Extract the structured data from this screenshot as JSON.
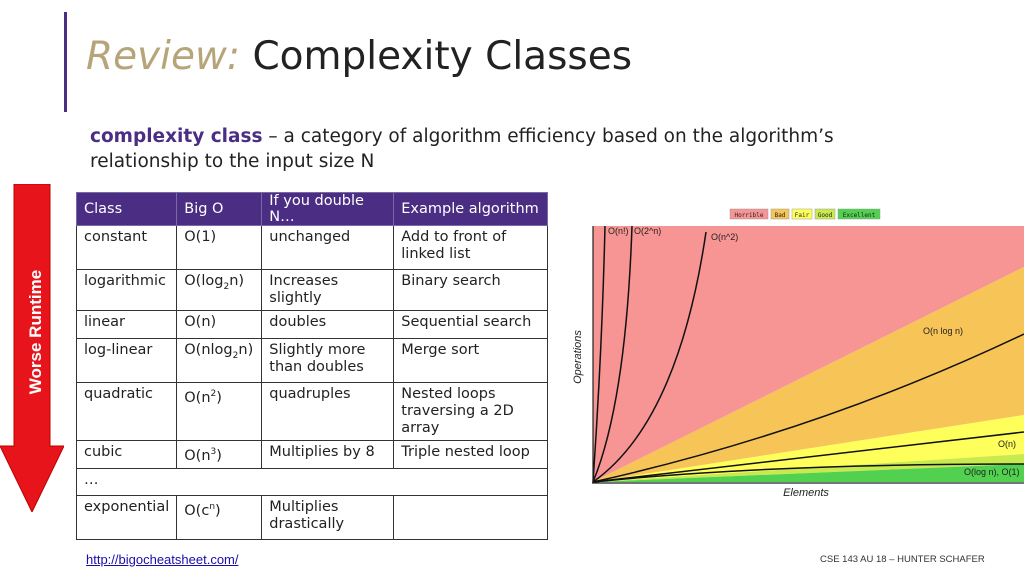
{
  "title": {
    "prefix": "Review:",
    "main": "Complexity Classes"
  },
  "definition": {
    "term": "complexity class",
    "text": " – a category of algorithm efficiency based on the algorithm’s relationship to the input size N"
  },
  "arrow_label": "Worse Runtime",
  "table": {
    "headers": [
      "Class",
      "Big O",
      "If you double N…",
      "Example algorithm"
    ],
    "rows": [
      {
        "cls": "constant",
        "big_o_base": "O(1)",
        "double": "unchanged",
        "example": "Add to front of linked list"
      },
      {
        "cls": "logarithmic",
        "big_o_pre": "O(log",
        "big_o_sub": "2",
        "big_o_post": "n)",
        "double": "Increases slightly",
        "example": "Binary search"
      },
      {
        "cls": "linear",
        "big_o_base": "O(n)",
        "double": "doubles",
        "example": "Sequential search"
      },
      {
        "cls": "log-linear",
        "big_o_pre": "O(nlog",
        "big_o_sub": "2",
        "big_o_post": "n)",
        "double": "Slightly more than doubles",
        "example": "Merge sort"
      },
      {
        "cls": "quadratic",
        "big_o_pre": "O(n",
        "big_o_sup": "2",
        "big_o_post": ")",
        "double": "quadruples",
        "example": "Nested loops traversing a 2D array"
      },
      {
        "cls": "cubic",
        "big_o_pre": "O(n",
        "big_o_sup": "3",
        "big_o_post": ")",
        "double": "Multiplies by 8",
        "example": "Triple nested loop"
      },
      {
        "ellipsis": "…"
      },
      {
        "cls": "exponential",
        "big_o_pre": "O(c",
        "big_o_sup": "n",
        "big_o_post": ")",
        "double": "Multiplies drastically",
        "example": ""
      }
    ]
  },
  "chart_data": {
    "type": "line",
    "legend": [
      "Horrible",
      "Bad",
      "Fair",
      "Good",
      "Excellent"
    ],
    "legend_colors": [
      "#f79494",
      "#f7c457",
      "#ffff5c",
      "#c8ea4e",
      "#52d150"
    ],
    "legend_placement": "top-center",
    "xlabel": "Elements",
    "ylabel": "Operations",
    "series": [
      {
        "name": "O(n!)"
      },
      {
        "name": "O(2^n)"
      },
      {
        "name": "O(n^2)"
      },
      {
        "name": "O(n log n)"
      },
      {
        "name": "O(n)"
      },
      {
        "name": "O(log n), O(1)"
      }
    ]
  },
  "link": "http://bigocheatsheet.com/",
  "footer": "CSE 143 AU 18 – HUNTER SCHAFER"
}
